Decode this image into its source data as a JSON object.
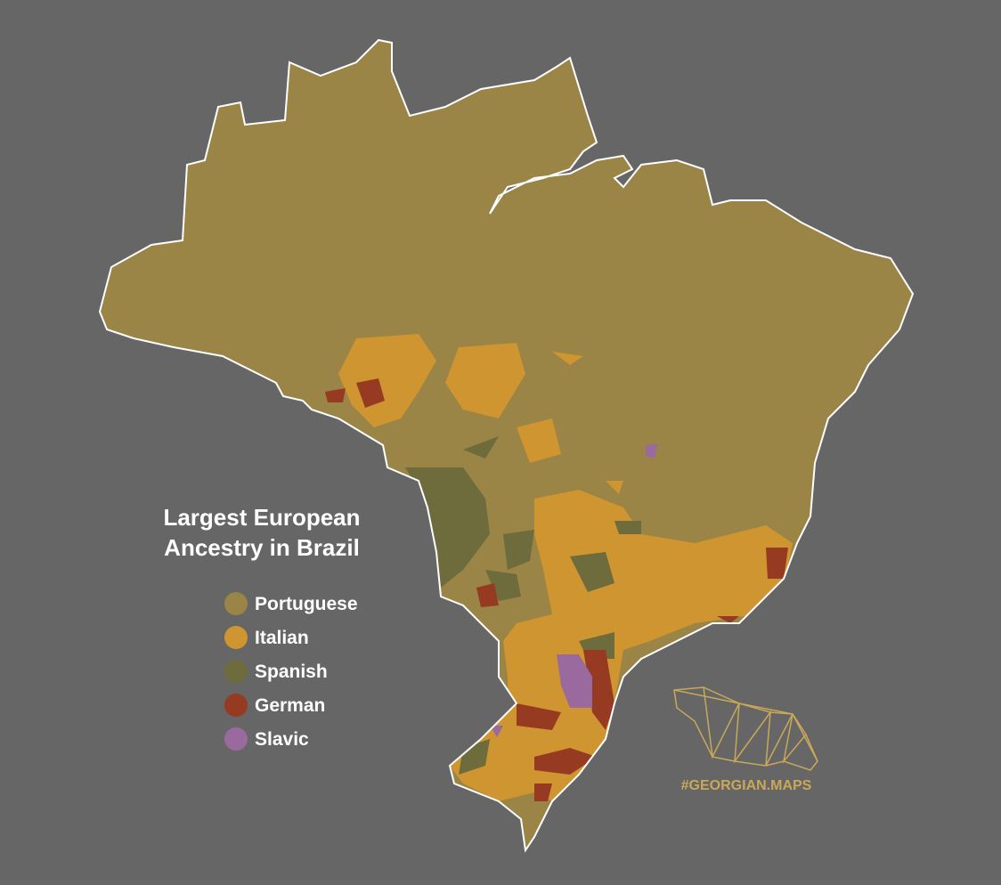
{
  "title_lines": [
    "Largest European",
    "Ancestry in Brazil"
  ],
  "legend": [
    {
      "label": "Portuguese",
      "color": "#9a8446"
    },
    {
      "label": "Italian",
      "color": "#cf9530"
    },
    {
      "label": "Spanish",
      "color": "#6e6b3c"
    },
    {
      "label": "German",
      "color": "#963a22"
    },
    {
      "label": "Slavic",
      "color": "#9a6a9e"
    }
  ],
  "watermark": "#GEORGIAN.MAPS"
}
